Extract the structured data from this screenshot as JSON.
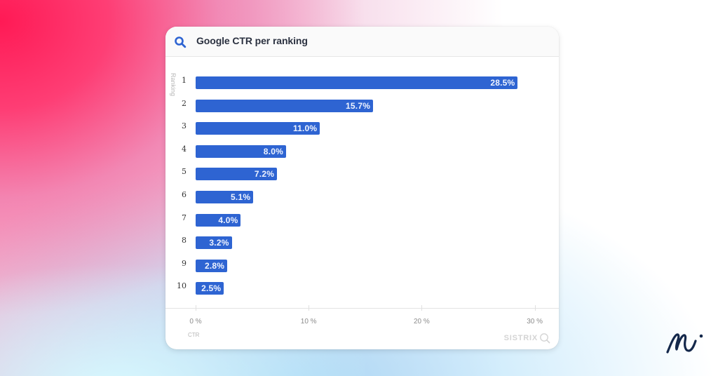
{
  "card": {
    "title": "Google CTR per ranking",
    "header_icon": "search-icon",
    "y_axis_title": "Ranking",
    "x_axis_title": "CTR",
    "watermark": "SISTRIX",
    "watermark_icon": "magnifier-icon"
  },
  "colors": {
    "bar": "#2e64d2",
    "header_icon": "#2e64d2",
    "title": "#2b3140",
    "logo": "#14284b"
  },
  "x_ticks": [
    "0 %",
    "10 %",
    "20 %",
    "30 %"
  ],
  "rows": [
    {
      "rank": "1",
      "label": "28.5%"
    },
    {
      "rank": "2",
      "label": "15.7%"
    },
    {
      "rank": "3",
      "label": "11.0%"
    },
    {
      "rank": "4",
      "label": "8.0%"
    },
    {
      "rank": "5",
      "label": "7.2%"
    },
    {
      "rank": "6",
      "label": "5.1%"
    },
    {
      "rank": "7",
      "label": "4.0%"
    },
    {
      "rank": "8",
      "label": "3.2%"
    },
    {
      "rank": "9",
      "label": "2.8%"
    },
    {
      "rank": "10",
      "label": "2.5%"
    }
  ],
  "brand": {
    "logo_icon": "mi-script-logo-icon"
  },
  "chart_data": {
    "type": "bar",
    "orientation": "horizontal",
    "title": "Google CTR per ranking",
    "categories": [
      "1",
      "2",
      "3",
      "4",
      "5",
      "6",
      "7",
      "8",
      "9",
      "10"
    ],
    "values": [
      28.5,
      15.7,
      11.0,
      8.0,
      7.2,
      5.1,
      4.0,
      3.2,
      2.8,
      2.5
    ],
    "value_labels": [
      "28.5%",
      "15.7%",
      "11.0%",
      "8.0%",
      "7.2%",
      "5.1%",
      "4.0%",
      "3.2%",
      "2.8%",
      "2.5%"
    ],
    "xlabel": "CTR",
    "ylabel": "Ranking",
    "xlim": [
      0,
      30
    ],
    "x_ticks": [
      "0 %",
      "10 %",
      "20 %",
      "30 %"
    ],
    "grid": false,
    "legend": null,
    "source_watermark": "SISTRIX"
  }
}
